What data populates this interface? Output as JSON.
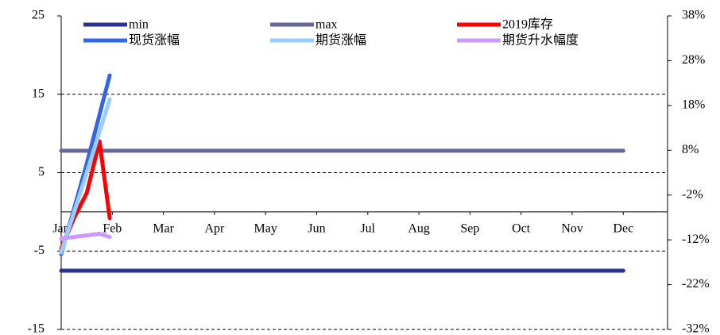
{
  "chart_data": {
    "type": "line",
    "categories": [
      "Jan",
      "Feb",
      "Mar",
      "Apr",
      "May",
      "Jun",
      "Jul",
      "Aug",
      "Sep",
      "Oct",
      "Nov",
      "Dec"
    ],
    "ylim": [
      -15,
      25
    ],
    "yticks": [
      -15,
      -5,
      5,
      15,
      25
    ],
    "y2lim": [
      -32,
      38
    ],
    "y2ticks": [
      {
        "value": -32,
        "label": "-32%"
      },
      {
        "value": -22,
        "label": "-22%"
      },
      {
        "value": -12,
        "label": "-12%"
      },
      {
        "value": -2,
        "label": "-2%"
      },
      {
        "value": 8,
        "label": "8%"
      },
      {
        "value": 18,
        "label": "18%"
      },
      {
        "value": 28,
        "label": "28%"
      },
      {
        "value": 38,
        "label": "38%"
      }
    ],
    "grid": true,
    "series": [
      {
        "name": "min",
        "color": "#2e3192",
        "x": [
          0,
          1,
          2,
          3,
          4,
          5,
          6,
          7,
          8,
          9,
          10,
          11
        ],
        "values": [
          -7.5,
          -7.5,
          -7.5,
          -7.5,
          -7.5,
          -7.5,
          -7.5,
          -7.5,
          -7.5,
          -7.5,
          -7.5,
          -7.5
        ]
      },
      {
        "name": "max",
        "color": "#66669a",
        "x": [
          0,
          1,
          2,
          3,
          4,
          5,
          6,
          7,
          8,
          9,
          10,
          11
        ],
        "values": [
          7.8,
          7.8,
          7.8,
          7.8,
          7.8,
          7.8,
          7.8,
          7.8,
          7.8,
          7.8,
          7.8,
          7.8
        ]
      },
      {
        "name": "2019库存",
        "color": "#ff0000",
        "x": [
          0,
          0.25,
          0.5,
          0.75,
          0.95
        ],
        "values": [
          -4.7,
          -0.8,
          2.4,
          9,
          -0.8
        ]
      },
      {
        "name": "现货涨幅",
        "color": "#3366e6",
        "axis": "y2",
        "x": [
          0,
          0.5,
          0.95
        ],
        "values": [
          -15.2,
          5,
          24.7
        ]
      },
      {
        "name": "期货涨幅",
        "color": "#99ccff",
        "axis": "y2",
        "x": [
          0,
          0.5,
          0.95
        ],
        "values": [
          -14.8,
          3,
          19.4
        ]
      },
      {
        "name": "期货升水幅度",
        "color": "#cc99ff",
        "x": [
          0,
          0.25,
          0.5,
          0.75,
          0.95
        ],
        "values": [
          -3.4,
          -3.2,
          -3.0,
          -2.8,
          -3.2
        ]
      }
    ]
  }
}
